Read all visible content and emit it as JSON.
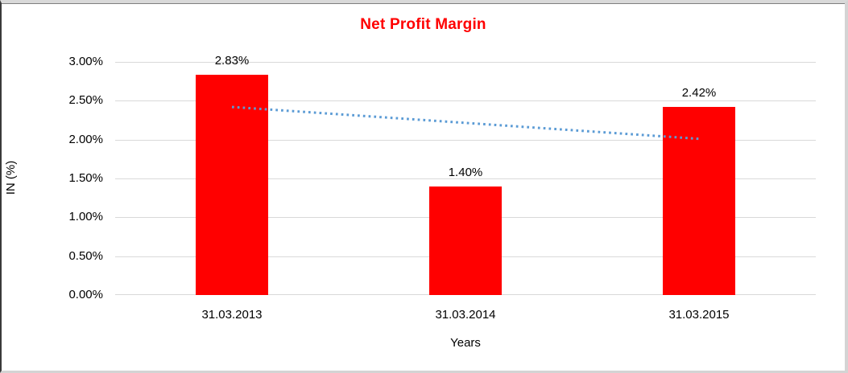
{
  "colors": {
    "bar": "#ff0000",
    "title": "#ff0000",
    "trendline": "#5b9bd5",
    "gridline": "#d9d9d9",
    "text": "#000000"
  },
  "chart_data": {
    "type": "bar",
    "title": "Net Profit Margin",
    "categories": [
      "31.03.2013",
      "31.03.2014",
      "31.03.2015"
    ],
    "values": [
      2.83,
      1.4,
      2.42
    ],
    "data_labels": [
      "2.83%",
      "1.40%",
      "2.42%"
    ],
    "xlabel": "Years",
    "ylabel": "IN (%)",
    "ylim": [
      0,
      3
    ],
    "ytick_step": 0.5,
    "ytick_labels": [
      "0.00%",
      "0.50%",
      "1.00%",
      "1.50%",
      "2.00%",
      "2.50%",
      "3.00%"
    ],
    "grid": true,
    "legend": false,
    "trendline": {
      "style": "dotted",
      "start_value": 2.42,
      "end_value": 2.01
    }
  }
}
